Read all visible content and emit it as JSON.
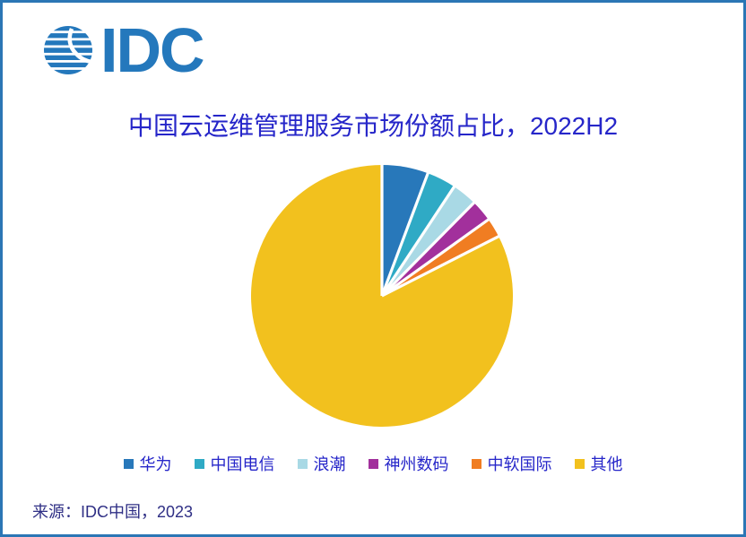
{
  "logo": {
    "text": "IDC",
    "color": "#2478BC"
  },
  "title": "中国云运维管理服务市场份额占比，2022H2",
  "title_color": "#2626C9",
  "source": "来源：IDC中国，2023",
  "source_color": "#2F2F85",
  "border_color": "#2B76B5",
  "chart_data": {
    "type": "pie",
    "title": "中国云运维管理服务市场份额占比，2022H2",
    "categories": [
      "华为",
      "中国电信",
      "浪潮",
      "神州数码",
      "中软国际",
      "其他"
    ],
    "values": [
      5.7,
      3.6,
      3.1,
      2.7,
      2.4,
      82.5
    ],
    "unit": "percent",
    "values_estimated_from_angles": true,
    "labels_shown": false,
    "colors": [
      "#2878BA",
      "#2FAAC5",
      "#A9D9E5",
      "#A2309C",
      "#F07D22",
      "#F2C11E"
    ],
    "legend_position": "bottom",
    "legend_text_color": "#2626C9",
    "start_angle_deg": 0,
    "direction": "clockwise",
    "slice_separator": "white radial gaps"
  }
}
